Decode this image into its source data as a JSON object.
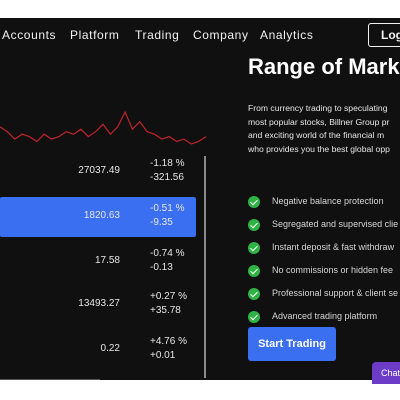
{
  "nav": {
    "items": [
      "Accounts",
      "Platform",
      "Trading",
      "Company",
      "Analytics"
    ],
    "login_label": "Log"
  },
  "quotes": [
    {
      "price": "27037.49",
      "change_pct": "-1.18 %",
      "change_abs": "-321.56",
      "active": false
    },
    {
      "price": "1820.63",
      "change_pct": "-0.51 %",
      "change_abs": "-9.35",
      "active": true
    },
    {
      "price": "17.58",
      "change_pct": "-0.74 %",
      "change_abs": "-0.13",
      "active": false
    },
    {
      "price": "13493.27",
      "change_pct": "+0.27 %",
      "change_abs": "+35.78",
      "active": false
    },
    {
      "price": "0.22",
      "change_pct": "+4.76 %",
      "change_abs": "+0.01",
      "active": false
    }
  ],
  "sparkline": {
    "color": "#c0242b",
    "values": [
      52,
      50,
      47,
      49,
      48,
      46,
      49,
      47,
      48,
      50,
      49,
      51,
      48,
      50,
      53,
      49,
      52,
      58,
      51,
      54,
      50,
      49,
      47,
      48,
      46,
      47,
      45,
      46,
      48
    ]
  },
  "hero": {
    "headline": "Range of Mark",
    "intro_lines": [
      "From currency trading to speculating",
      "most popular stocks, Billner Group pr",
      "and exciting world of the financial m",
      "who provides you the best global opp"
    ],
    "features": [
      "Negative balance protection",
      "Segregated and supervised clie",
      "Instant deposit & fast withdraw",
      "No commissions or hidden fee",
      "Professional support & client se",
      "Advanced trading platform"
    ],
    "cta_label": "Start Trading"
  },
  "chat": {
    "label": "Chat"
  },
  "colors": {
    "accent": "#3b6ff2",
    "check": "#2fb344",
    "chat": "#6c3cc9",
    "background": "#101010"
  }
}
